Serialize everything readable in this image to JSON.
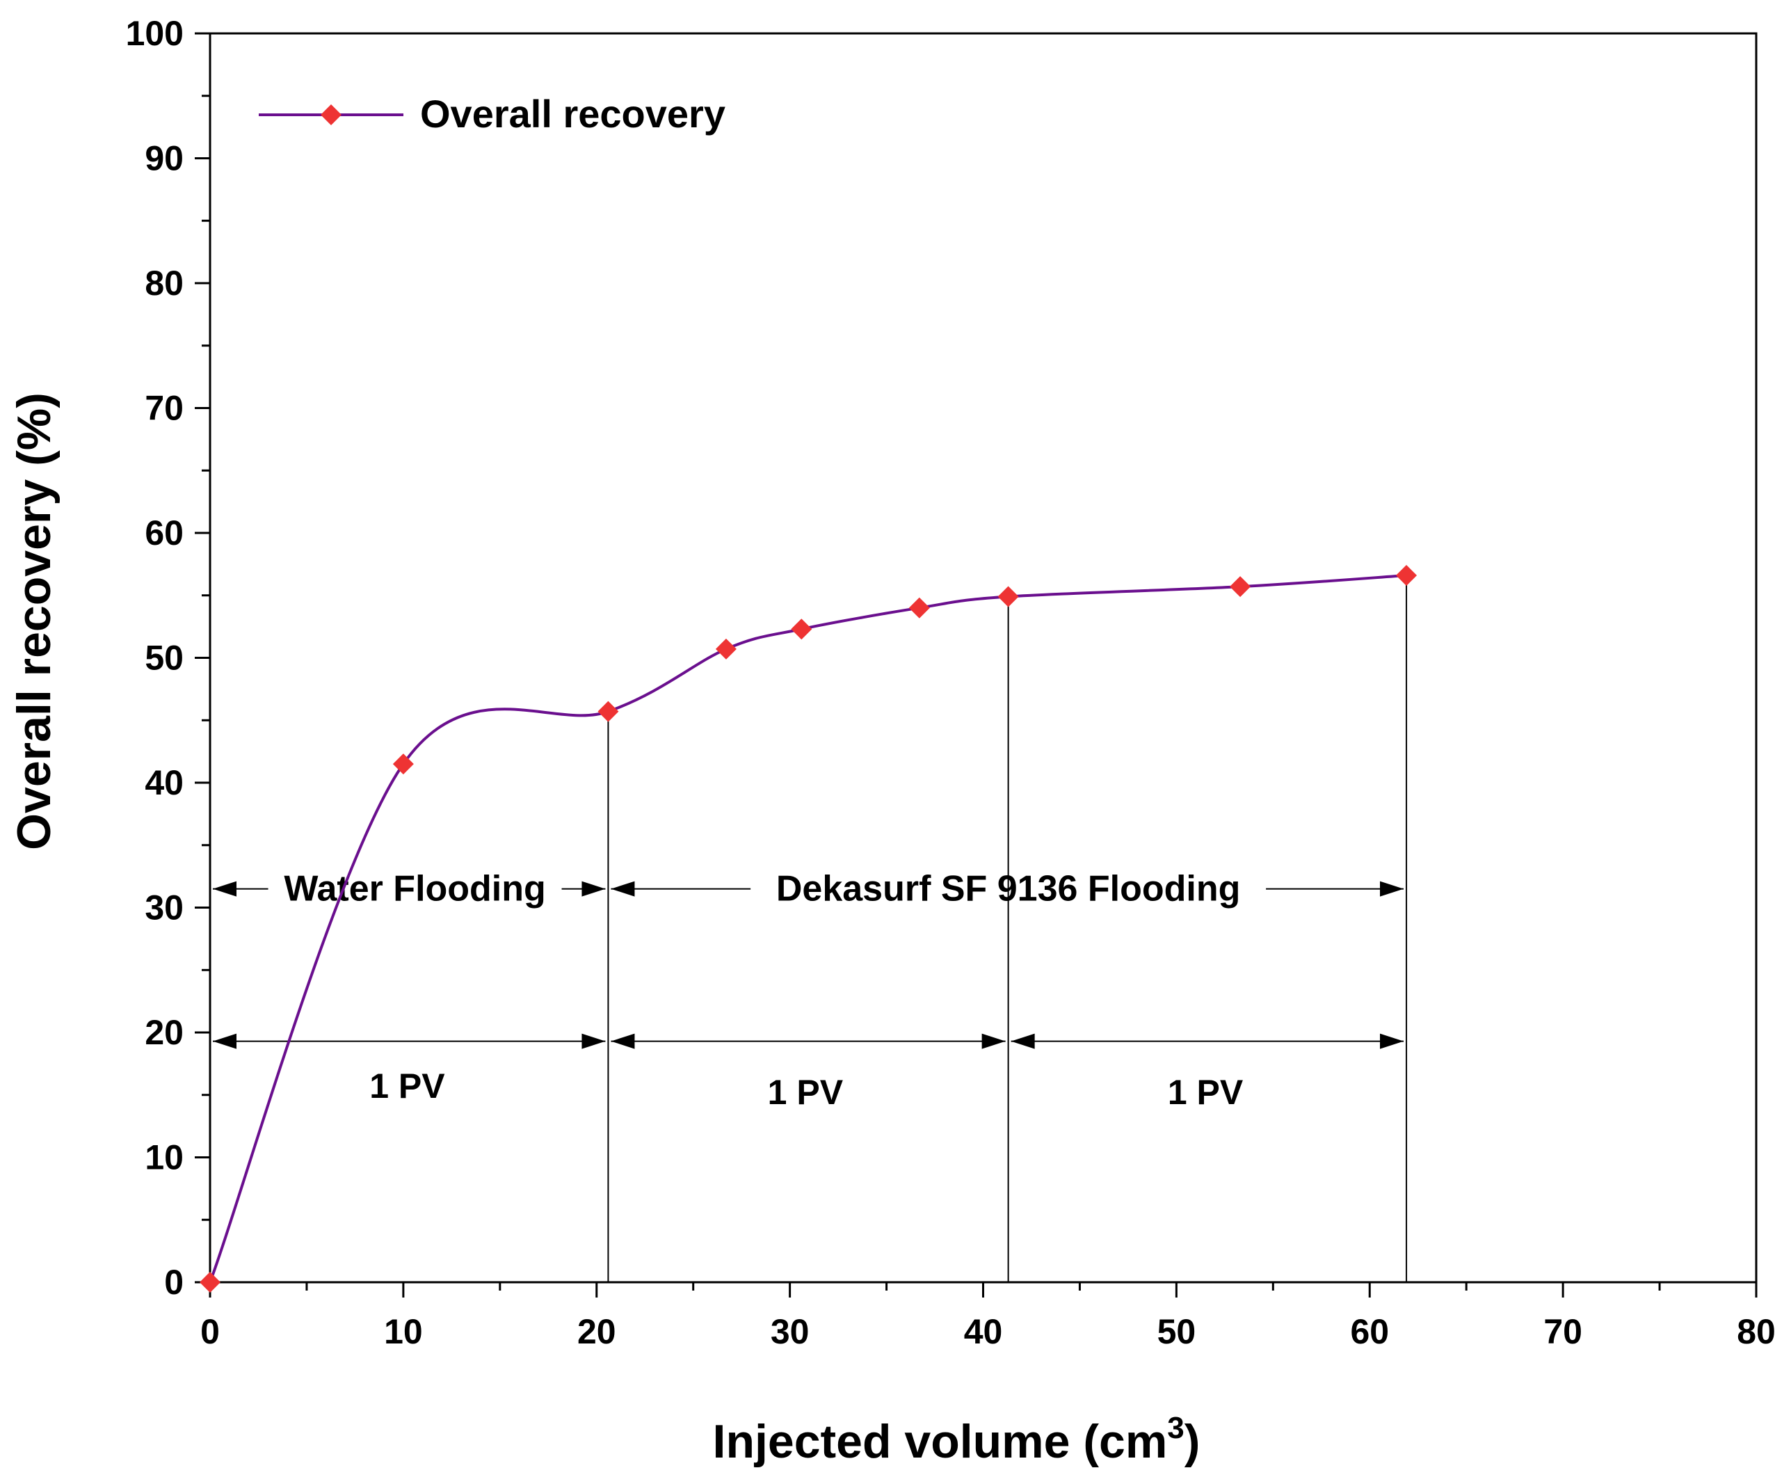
{
  "chart_data": {
    "type": "line",
    "title": "",
    "xlabel": "Injected volume (cm",
    "xlabel_superscript": "3",
    "xlabel_suffix": ")",
    "ylabel": "Overall recovery (%)",
    "xlim": [
      0,
      80
    ],
    "ylim": [
      0,
      100
    ],
    "x_ticks": [
      0,
      10,
      20,
      30,
      40,
      50,
      60,
      70,
      80
    ],
    "y_ticks": [
      0,
      10,
      20,
      30,
      40,
      50,
      60,
      70,
      80,
      90,
      100
    ],
    "grid": false,
    "legend_position": "top-left",
    "series": [
      {
        "name": "Overall recovery",
        "line_color": "#6a0f8e",
        "marker_color": "#ee3333",
        "marker": "diamond",
        "x": [
          0,
          10,
          20.6,
          26.7,
          30.6,
          36.7,
          41.3,
          53.3,
          61.9
        ],
        "y": [
          0,
          41.5,
          45.7,
          50.7,
          52.3,
          54.0,
          54.9,
          55.7,
          56.6
        ]
      }
    ],
    "vertical_lines": [
      20.6,
      41.3,
      61.9
    ],
    "annotations": [
      {
        "text": "Water Flooding",
        "x1": 0,
        "x2": 20.6,
        "y": 31.5,
        "label_x": 10.6
      },
      {
        "text": "Dekasurf SF 9136 Flooding",
        "x1": 20.6,
        "x2": 61.9,
        "y": 31.5,
        "label_x": 41.3
      },
      {
        "text": "1 PV",
        "x1": 0,
        "x2": 20.6,
        "y": 19.3,
        "label_x": 10.2,
        "label_y": 15.7
      },
      {
        "text": "1 PV",
        "x1": 20.6,
        "x2": 41.3,
        "y": 19.3,
        "label_x": 30.8,
        "label_y": 15.2
      },
      {
        "text": "1 PV",
        "x1": 41.3,
        "x2": 61.9,
        "y": 19.3,
        "label_x": 51.5,
        "label_y": 15.2
      }
    ]
  }
}
